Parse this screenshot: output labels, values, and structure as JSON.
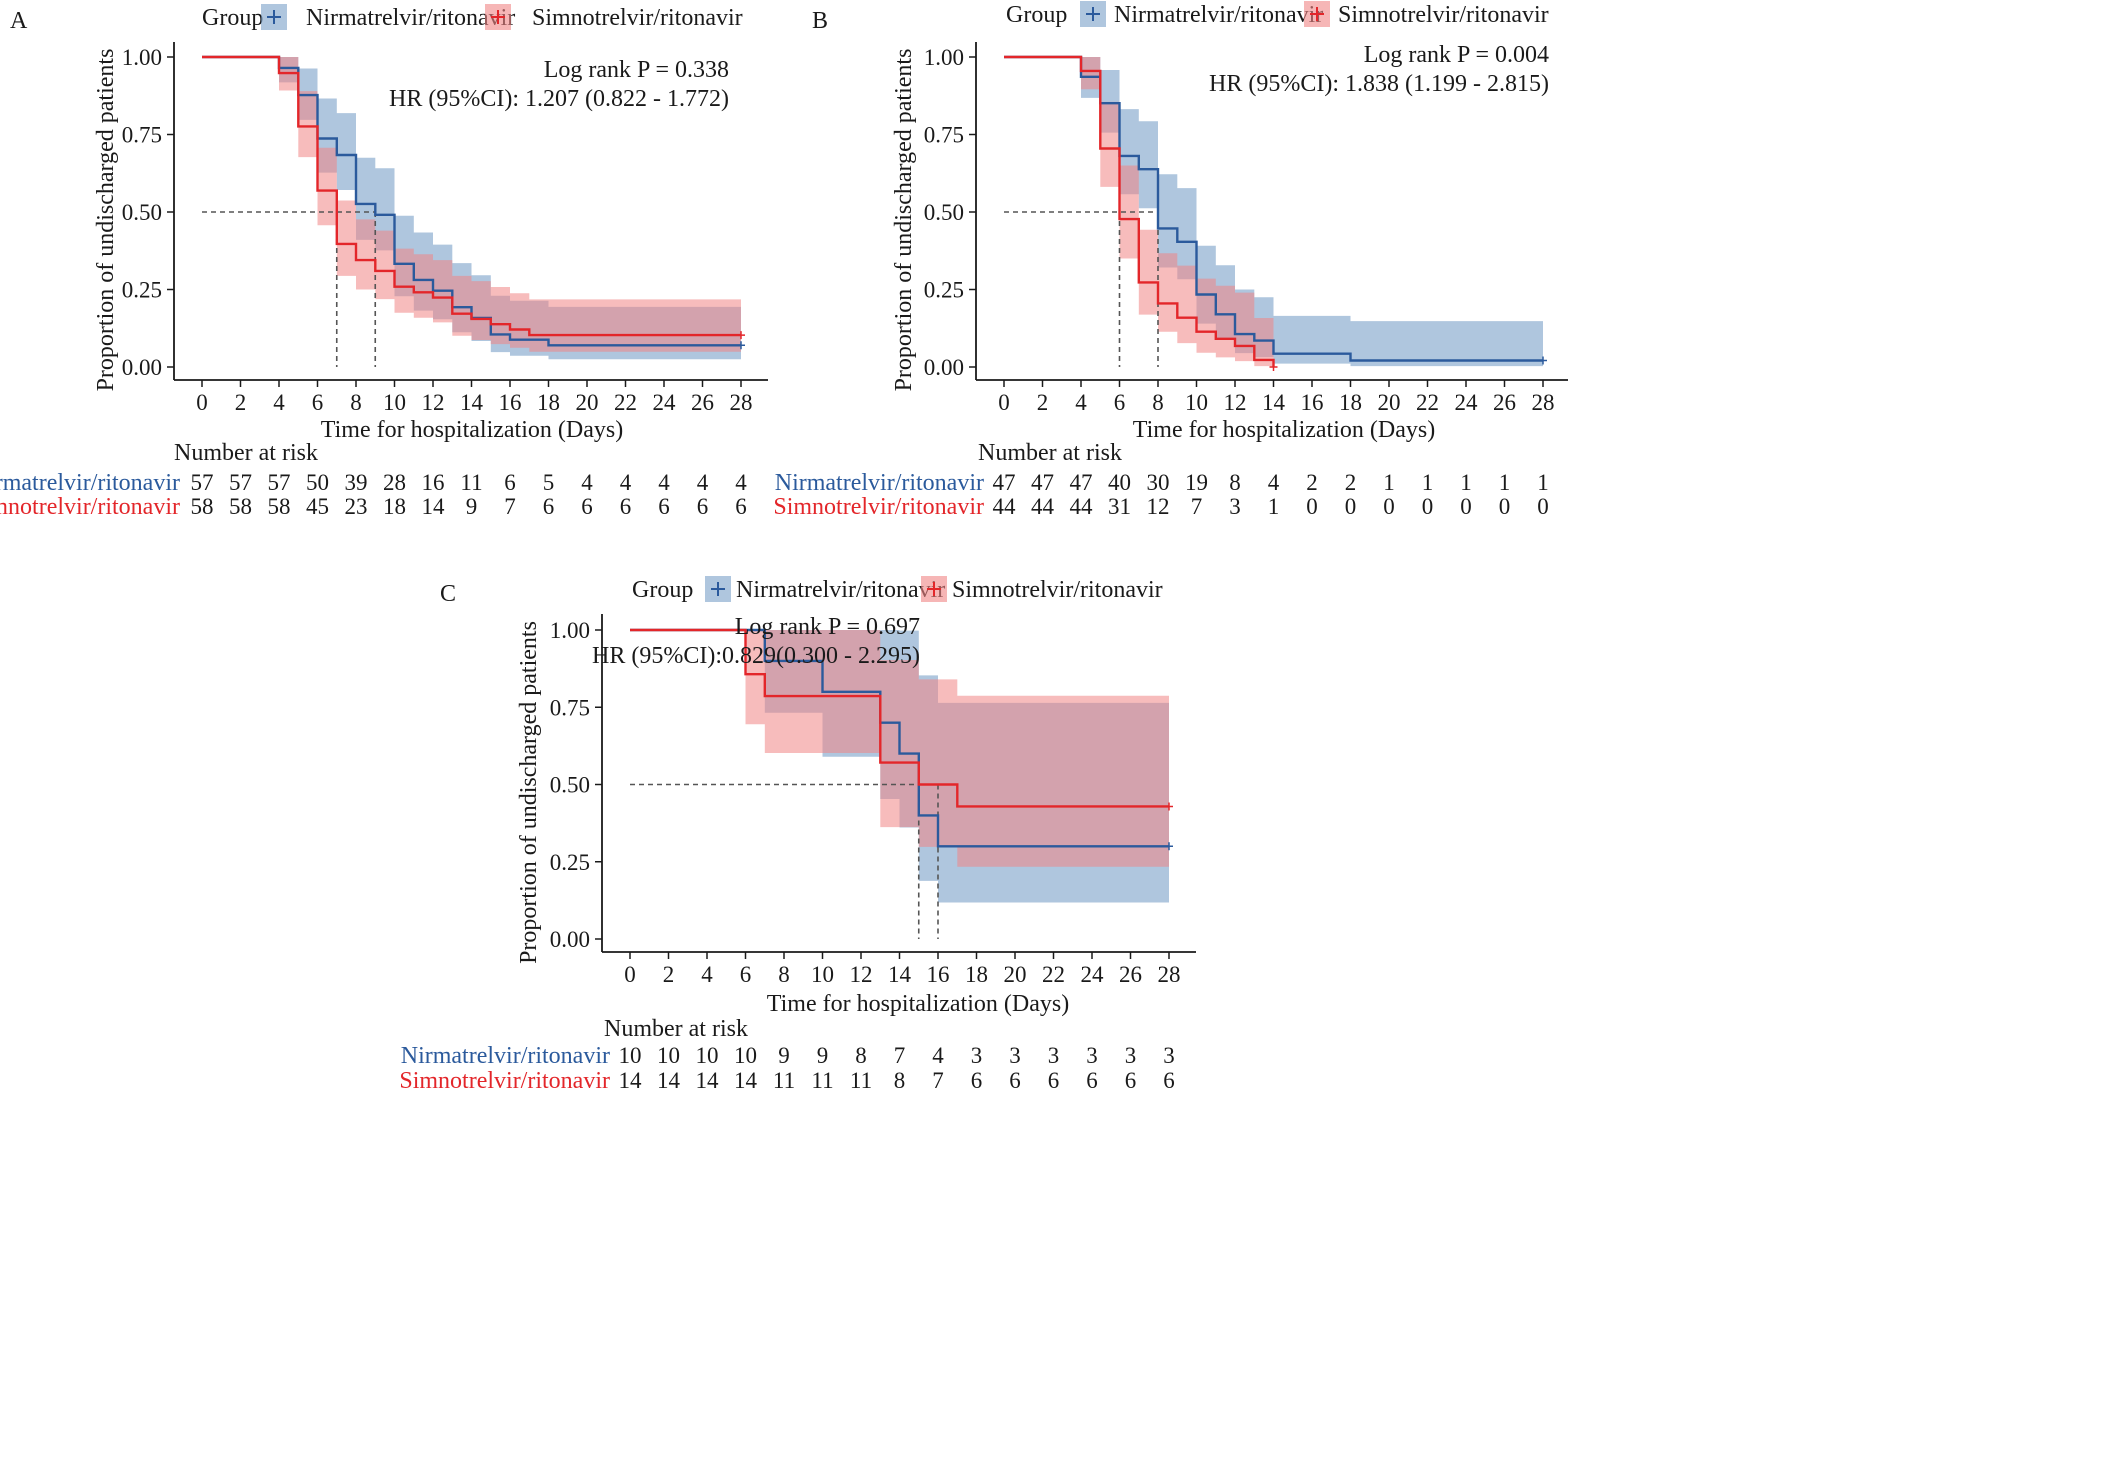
{
  "chart_data": [
    {
      "panel": "A",
      "type": "line",
      "title": "",
      "xlabel": "Time for hospitalization (Days)",
      "ylabel": "Proportion of undischarged patients",
      "xlim": [
        0,
        28
      ],
      "ylim": [
        0,
        1
      ],
      "xticks": [
        0,
        2,
        4,
        6,
        8,
        10,
        12,
        14,
        16,
        18,
        20,
        22,
        24,
        26,
        28
      ],
      "yticks": [
        "0.00",
        "0.25",
        "0.50",
        "0.75",
        "1.00"
      ],
      "legend_title": "Group",
      "stats": [
        "Log rank P = 0.338",
        "HR (95%CI): 1.207 (0.822 - 1.772)"
      ],
      "median_line": {
        "y": 0.5,
        "x_medians": [
          7,
          9
        ]
      },
      "risk_title": "Number at risk",
      "risk_times": [
        0,
        2,
        4,
        6,
        8,
        10,
        12,
        14,
        16,
        18,
        20,
        22,
        24,
        26,
        28
      ],
      "series": [
        {
          "name": "Nirmatrelvir/ritonavir",
          "color": "#2b5a9c",
          "band_color": "#7aa0c8",
          "steps": [
            [
              0,
              1.0
            ],
            [
              4,
              0.965
            ],
            [
              5,
              0.877
            ],
            [
              6,
              0.737
            ],
            [
              7,
              0.684
            ],
            [
              8,
              0.526
            ],
            [
              9,
              0.491
            ],
            [
              10,
              0.333
            ],
            [
              11,
              0.281
            ],
            [
              12,
              0.246
            ],
            [
              13,
              0.193
            ],
            [
              14,
              0.158
            ],
            [
              15,
              0.105
            ],
            [
              16,
              0.088
            ],
            [
              18,
              0.07
            ],
            [
              28,
              0.07
            ]
          ],
          "ci_low": [
            1.0,
            0.918,
            0.797,
            0.627,
            0.571,
            0.41,
            0.376,
            0.228,
            0.182,
            0.154,
            0.112,
            0.084,
            0.048,
            0.036,
            0.025,
            0.025
          ],
          "ci_high": [
            1.0,
            1.0,
            0.963,
            0.866,
            0.819,
            0.675,
            0.641,
            0.488,
            0.434,
            0.395,
            0.335,
            0.296,
            0.23,
            0.214,
            0.194,
            0.194
          ],
          "risk": [
            57,
            57,
            57,
            50,
            39,
            28,
            16,
            11,
            6,
            5,
            4,
            4,
            4,
            4,
            4
          ]
        },
        {
          "name": "Simnotrelvir/ritonavir",
          "color": "#e3262a",
          "band_color": "#f08585",
          "steps": [
            [
              0,
              1.0
            ],
            [
              4,
              0.948
            ],
            [
              5,
              0.776
            ],
            [
              6,
              0.569
            ],
            [
              7,
              0.397
            ],
            [
              8,
              0.345
            ],
            [
              9,
              0.31
            ],
            [
              10,
              0.259
            ],
            [
              11,
              0.241
            ],
            [
              12,
              0.224
            ],
            [
              13,
              0.172
            ],
            [
              14,
              0.155
            ],
            [
              15,
              0.138
            ],
            [
              16,
              0.121
            ],
            [
              17,
              0.103
            ],
            [
              28,
              0.103
            ]
          ],
          "ci_low": [
            1.0,
            0.892,
            0.677,
            0.457,
            0.294,
            0.25,
            0.219,
            0.175,
            0.159,
            0.144,
            0.101,
            0.087,
            0.074,
            0.062,
            0.049,
            0.049
          ],
          "ci_high": [
            1.0,
            1.0,
            0.89,
            0.707,
            0.537,
            0.476,
            0.44,
            0.382,
            0.364,
            0.345,
            0.294,
            0.277,
            0.258,
            0.238,
            0.218,
            0.218
          ],
          "risk": [
            58,
            58,
            58,
            45,
            23,
            18,
            14,
            9,
            7,
            6,
            6,
            6,
            6,
            6,
            6
          ]
        }
      ]
    },
    {
      "panel": "B",
      "type": "line",
      "title": "",
      "xlabel": "Time for hospitalization (Days)",
      "ylabel": "Proportion of undischarged patients",
      "xlim": [
        0,
        28
      ],
      "ylim": [
        0,
        1
      ],
      "xticks": [
        0,
        2,
        4,
        6,
        8,
        10,
        12,
        14,
        16,
        18,
        20,
        22,
        24,
        26,
        28
      ],
      "yticks": [
        "0.00",
        "0.25",
        "0.50",
        "0.75",
        "1.00"
      ],
      "legend_title": "Group",
      "stats": [
        "Log rank P = 0.004",
        "HR (95%CI): 1.838 (1.199 - 2.815)"
      ],
      "median_line": {
        "y": 0.5,
        "x_medians": [
          6,
          8
        ]
      },
      "risk_title": "Number at risk",
      "risk_times": [
        0,
        2,
        4,
        6,
        8,
        10,
        12,
        14,
        16,
        18,
        20,
        22,
        24,
        26,
        28
      ],
      "series": [
        {
          "name": "Nirmatrelvir/ritonavir",
          "color": "#2b5a9c",
          "band_color": "#7aa0c8",
          "steps": [
            [
              0,
              1.0
            ],
            [
              4,
              0.936
            ],
            [
              5,
              0.851
            ],
            [
              6,
              0.681
            ],
            [
              7,
              0.638
            ],
            [
              8,
              0.447
            ],
            [
              9,
              0.404
            ],
            [
              10,
              0.234
            ],
            [
              11,
              0.17
            ],
            [
              12,
              0.106
            ],
            [
              13,
              0.085
            ],
            [
              14,
              0.043
            ],
            [
              15,
              0.043
            ],
            [
              18,
              0.021
            ],
            [
              28,
              0.021
            ]
          ],
          "ci_low": [
            1.0,
            0.868,
            0.756,
            0.557,
            0.512,
            0.321,
            0.283,
            0.14,
            0.088,
            0.045,
            0.032,
            0.011,
            0.011,
            0.003,
            0.003
          ],
          "ci_high": [
            1.0,
            1.0,
            0.958,
            0.832,
            0.793,
            0.622,
            0.577,
            0.391,
            0.328,
            0.25,
            0.225,
            0.165,
            0.165,
            0.148,
            0.148
          ],
          "risk": [
            47,
            47,
            47,
            40,
            30,
            19,
            8,
            4,
            2,
            2,
            1,
            1,
            1,
            1,
            1
          ]
        },
        {
          "name": "Simnotrelvir/ritonavir",
          "color": "#e3262a",
          "band_color": "#f08585",
          "steps": [
            [
              0,
              1.0
            ],
            [
              4,
              0.955
            ],
            [
              5,
              0.705
            ],
            [
              6,
              0.477
            ],
            [
              7,
              0.273
            ],
            [
              8,
              0.205
            ],
            [
              9,
              0.159
            ],
            [
              10,
              0.114
            ],
            [
              11,
              0.091
            ],
            [
              12,
              0.068
            ],
            [
              13,
              0.023
            ],
            [
              14,
              0.0
            ]
          ],
          "ci_low": [
            1.0,
            0.896,
            0.581,
            0.35,
            0.169,
            0.114,
            0.077,
            0.046,
            0.031,
            0.019,
            0.003,
            0.0
          ],
          "ci_high": [
            1.0,
            1.0,
            0.855,
            0.65,
            0.443,
            0.367,
            0.327,
            0.285,
            0.262,
            0.24,
            0.158,
            0.0
          ],
          "risk": [
            44,
            44,
            44,
            31,
            12,
            7,
            3,
            1,
            0,
            0,
            0,
            0,
            0,
            0,
            0
          ]
        }
      ]
    },
    {
      "panel": "C",
      "type": "line",
      "title": "",
      "xlabel": "Time for hospitalization (Days)",
      "ylabel": "Proportion of undischarged patients",
      "xlim": [
        0,
        28
      ],
      "ylim": [
        0,
        1
      ],
      "xticks": [
        0,
        2,
        4,
        6,
        8,
        10,
        12,
        14,
        16,
        18,
        20,
        22,
        24,
        26,
        28
      ],
      "yticks": [
        "0.00",
        "0.25",
        "0.50",
        "0.75",
        "1.00"
      ],
      "legend_title": "Group",
      "stats": [
        "Log rank P = 0.697",
        "HR (95%CI):0.829(0.300 - 2.295)"
      ],
      "median_line": {
        "y": 0.5,
        "x_medians": [
          15,
          16
        ]
      },
      "risk_title": "Number at risk",
      "risk_times": [
        0,
        2,
        4,
        6,
        8,
        10,
        12,
        14,
        16,
        18,
        20,
        22,
        24,
        26,
        28
      ],
      "series": [
        {
          "name": "Nirmatrelvir/ritonavir",
          "color": "#2b5a9c",
          "band_color": "#7aa0c8",
          "steps": [
            [
              0,
              1.0
            ],
            [
              7,
              0.9
            ],
            [
              10,
              0.8
            ],
            [
              13,
              0.7
            ],
            [
              14,
              0.6
            ],
            [
              15,
              0.4
            ],
            [
              16,
              0.3
            ],
            [
              28,
              0.3
            ]
          ],
          "ci_low": [
            1.0,
            0.732,
            0.59,
            0.453,
            0.361,
            0.188,
            0.118,
            0.118
          ],
          "ci_high": [
            1.0,
            1.0,
            1.0,
            1.0,
            0.998,
            0.853,
            0.764,
            0.764
          ],
          "risk": [
            10,
            10,
            10,
            10,
            9,
            9,
            8,
            7,
            4,
            3,
            3,
            3,
            3,
            3,
            3
          ]
        },
        {
          "name": "Simnotrelvir/ritonavir",
          "color": "#e3262a",
          "band_color": "#f08585",
          "steps": [
            [
              0,
              1.0
            ],
            [
              6,
              0.857
            ],
            [
              7,
              0.786
            ],
            [
              13,
              0.571
            ],
            [
              15,
              0.5
            ],
            [
              17,
              0.429
            ],
            [
              28,
              0.429
            ]
          ],
          "ci_low": [
            1.0,
            0.695,
            0.602,
            0.362,
            0.298,
            0.234,
            0.234
          ],
          "ci_high": [
            1.0,
            1.0,
            1.0,
            0.903,
            0.84,
            0.787,
            0.787
          ],
          "risk": [
            14,
            14,
            14,
            14,
            11,
            11,
            11,
            8,
            7,
            6,
            6,
            6,
            6,
            6,
            6
          ]
        }
      ]
    }
  ]
}
